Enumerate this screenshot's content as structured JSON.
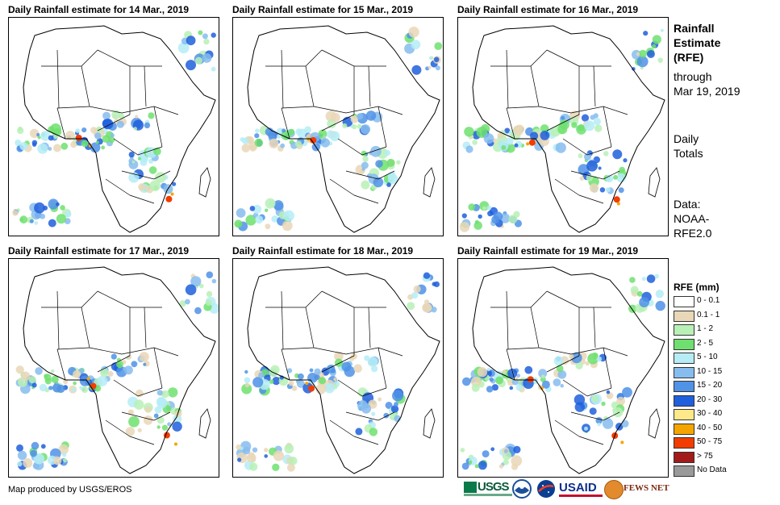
{
  "panels": [
    {
      "title": "Daily Rainfall estimate for 14 Mar., 2019"
    },
    {
      "title": "Daily Rainfall estimate for 15 Mar., 2019"
    },
    {
      "title": "Daily Rainfall estimate for 16 Mar., 2019"
    },
    {
      "title": "Daily Rainfall estimate for 17 Mar., 2019"
    },
    {
      "title": "Daily Rainfall estimate for 18 Mar., 2019"
    },
    {
      "title": "Daily Rainfall estimate for 19 Mar., 2019"
    }
  ],
  "sidebar": {
    "title_lines": [
      "Rainfall",
      "Estimate",
      "(RFE)"
    ],
    "through_lines": [
      "through",
      "Mar 19, 2019"
    ],
    "daily_lines": [
      "Daily",
      "Totals"
    ],
    "data_lines": [
      "Data:",
      "NOAA-",
      "RFE2.0"
    ]
  },
  "legend": {
    "title": "RFE (mm)",
    "items": [
      {
        "label": "0 - 0.1",
        "color": "#ffffff"
      },
      {
        "label": "0.1 - 1",
        "color": "#e9d7b7"
      },
      {
        "label": "1 - 2",
        "color": "#b9f0b6"
      },
      {
        "label": "2 - 5",
        "color": "#6fe06f"
      },
      {
        "label": "5 - 10",
        "color": "#b5ecf6"
      },
      {
        "label": "10 - 15",
        "color": "#86bcee"
      },
      {
        "label": "15 - 20",
        "color": "#4f92e6"
      },
      {
        "label": "20 - 30",
        "color": "#1f5fdc"
      },
      {
        "label": "30 - 40",
        "color": "#fde88a"
      },
      {
        "label": "40 - 50",
        "color": "#f5a500"
      },
      {
        "label": "50 - 75",
        "color": "#f23c00"
      },
      {
        "label": "> 75",
        "color": "#a31a1a"
      },
      {
        "label": "No Data",
        "color": "#9a9a9a"
      }
    ]
  },
  "footer": {
    "credit": "Map produced by USGS/EROS",
    "logos": [
      "USGS",
      "NOAA",
      "NASA",
      "USAID",
      "FEWS NET"
    ]
  }
}
